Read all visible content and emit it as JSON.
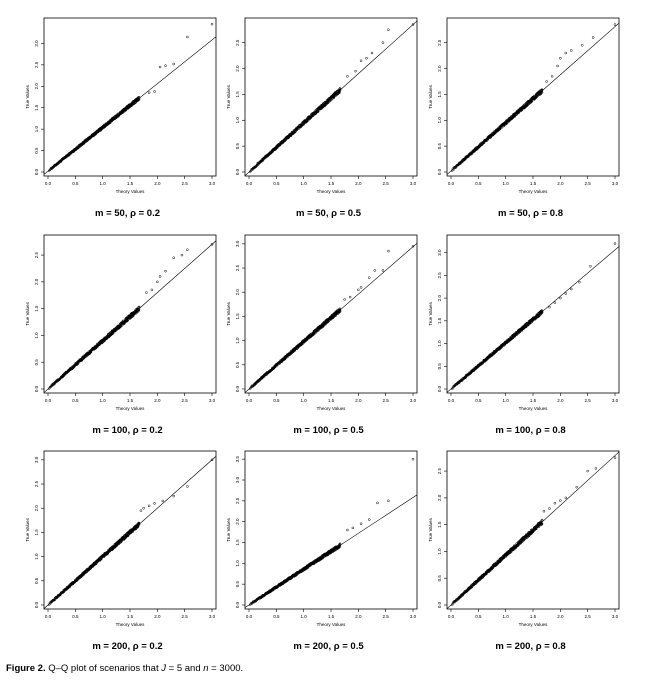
{
  "figure": {
    "caption_label": "Figure 2.",
    "caption_text_1": " Q–Q plot of scenarios that ",
    "caption_J": "J",
    "caption_text_2": " = 5 and ",
    "caption_n": "n",
    "caption_text_3": " = 3000."
  },
  "chart_data": [
    {
      "type": "scatter",
      "title": "m = 50, ρ = 0.2",
      "xlabel": "Theory Values",
      "ylabel": "True Values",
      "xlim": [
        0,
        3.0
      ],
      "ylim": [
        0,
        3.5
      ],
      "xticks": [
        "0.0",
        "0.5",
        "1.0",
        "1.5",
        "2.0",
        "2.5",
        "3.0"
      ],
      "yticks": [
        "0.0",
        "0.5",
        "1.0",
        "1.5",
        "2.0",
        "2.5",
        "3.0"
      ],
      "reference_line": {
        "slope": 1.02,
        "intercept": 0.02
      },
      "tail_points": [
        [
          1.85,
          1.85
        ],
        [
          1.95,
          1.88
        ],
        [
          2.05,
          2.45
        ],
        [
          2.15,
          2.48
        ],
        [
          2.3,
          2.52
        ],
        [
          2.55,
          3.15
        ],
        [
          3.0,
          3.45
        ]
      ]
    },
    {
      "type": "scatter",
      "title": "m = 50, ρ = 0.5",
      "xlabel": "Theory Values",
      "ylabel": "True Values",
      "xlim": [
        0,
        3.0
      ],
      "ylim": [
        0,
        2.9
      ],
      "xticks": [
        "0.0",
        "0.5",
        "1.0",
        "1.5",
        "2.0",
        "2.5",
        "3.0"
      ],
      "yticks": [
        "0.0",
        "0.5",
        "1.0",
        "1.5",
        "2.0",
        "2.5"
      ],
      "reference_line": {
        "slope": 0.95,
        "intercept": 0.0
      },
      "tail_points": [
        [
          1.8,
          1.85
        ],
        [
          1.95,
          1.95
        ],
        [
          2.05,
          2.15
        ],
        [
          2.15,
          2.2
        ],
        [
          2.25,
          2.3
        ],
        [
          2.45,
          2.5
        ],
        [
          2.55,
          2.75
        ],
        [
          3.0,
          2.85
        ]
      ]
    },
    {
      "type": "scatter",
      "title": "m = 50, ρ = 0.8",
      "xlabel": "Theory Values",
      "ylabel": "True Values",
      "xlim": [
        0,
        3.0
      ],
      "ylim": [
        0,
        2.9
      ],
      "xticks": [
        "0.0",
        "0.5",
        "1.0",
        "1.5",
        "2.0",
        "2.5",
        "3.0"
      ],
      "yticks": [
        "0.0",
        "0.5",
        "1.0",
        "1.5",
        "2.0",
        "2.5"
      ],
      "reference_line": {
        "slope": 0.93,
        "intercept": 0.02
      },
      "tail_points": [
        [
          1.75,
          1.75
        ],
        [
          1.85,
          1.85
        ],
        [
          1.95,
          2.05
        ],
        [
          2.0,
          2.2
        ],
        [
          2.1,
          2.3
        ],
        [
          2.2,
          2.35
        ],
        [
          2.4,
          2.45
        ],
        [
          2.6,
          2.6
        ],
        [
          3.0,
          2.85
        ]
      ]
    },
    {
      "type": "scatter",
      "title": "m = 100, ρ = 0.2",
      "xlabel": "Theory Values",
      "ylabel": "True Values",
      "xlim": [
        0,
        3.0
      ],
      "ylim": [
        0,
        2.8
      ],
      "xticks": [
        "0.0",
        "0.5",
        "1.0",
        "1.5",
        "2.0",
        "2.5",
        "3.0"
      ],
      "yticks": [
        "0.0",
        "0.5",
        "1.0",
        "1.5",
        "2.0",
        "2.5"
      ],
      "reference_line": {
        "slope": 0.9,
        "intercept": 0.0
      },
      "tail_points": [
        [
          1.8,
          1.8
        ],
        [
          1.9,
          1.85
        ],
        [
          2.0,
          2.0
        ],
        [
          2.05,
          2.1
        ],
        [
          2.15,
          2.2
        ],
        [
          2.3,
          2.45
        ],
        [
          2.45,
          2.5
        ],
        [
          2.55,
          2.6
        ],
        [
          3.0,
          2.7
        ]
      ]
    },
    {
      "type": "scatter",
      "title": "m = 100, ρ = 0.5",
      "xlabel": "Theory Values",
      "ylabel": "True Values",
      "xlim": [
        0,
        3.0
      ],
      "ylim": [
        0,
        3.1
      ],
      "xticks": [
        "0.0",
        "0.5",
        "1.0",
        "1.5",
        "2.0",
        "2.5",
        "3.0"
      ],
      "yticks": [
        "0.0",
        "0.5",
        "1.0",
        "1.5",
        "2.0",
        "2.5",
        "3.0"
      ],
      "reference_line": {
        "slope": 0.98,
        "intercept": 0.0
      },
      "tail_points": [
        [
          1.75,
          1.85
        ],
        [
          1.85,
          1.9
        ],
        [
          2.0,
          2.05
        ],
        [
          2.05,
          2.1
        ],
        [
          2.2,
          2.3
        ],
        [
          2.3,
          2.45
        ],
        [
          2.45,
          2.45
        ],
        [
          2.55,
          2.85
        ],
        [
          3.0,
          2.95
        ]
      ]
    },
    {
      "type": "scatter",
      "title": "m = 100, ρ = 0.8",
      "xlabel": "Theory Values",
      "ylabel": "True Values",
      "xlim": [
        0,
        3.0
      ],
      "ylim": [
        0,
        3.3
      ],
      "xticks": [
        "0.0",
        "0.5",
        "1.0",
        "1.5",
        "2.0",
        "2.5",
        "3.0"
      ],
      "yticks": [
        "0.0",
        "0.5",
        "1.0",
        "1.5",
        "2.0",
        "2.5",
        "3.0"
      ],
      "reference_line": {
        "slope": 1.02,
        "intercept": 0.0
      },
      "tail_points": [
        [
          1.8,
          1.8
        ],
        [
          1.9,
          1.9
        ],
        [
          2.0,
          2.0
        ],
        [
          2.1,
          2.1
        ],
        [
          2.2,
          2.2
        ],
        [
          2.35,
          2.35
        ],
        [
          2.55,
          2.7
        ],
        [
          3.0,
          3.2
        ]
      ]
    },
    {
      "type": "scatter",
      "title": "m = 200, ρ = 0.2",
      "xlabel": "Theory Values",
      "ylabel": "True Values",
      "xlim": [
        0,
        3.0
      ],
      "ylim": [
        0,
        3.1
      ],
      "xticks": [
        "0.0",
        "0.5",
        "1.0",
        "1.5",
        "2.0",
        "2.5",
        "3.0"
      ],
      "yticks": [
        "0.0",
        "0.5",
        "1.0",
        "1.5",
        "2.0",
        "2.5",
        "3.0"
      ],
      "reference_line": {
        "slope": 1.0,
        "intercept": 0.0
      },
      "tail_points": [
        [
          1.7,
          1.95
        ],
        [
          1.75,
          2.0
        ],
        [
          1.85,
          2.05
        ],
        [
          1.95,
          2.1
        ],
        [
          2.1,
          2.15
        ],
        [
          2.3,
          2.25
        ],
        [
          2.55,
          2.45
        ],
        [
          3.0,
          3.0
        ]
      ]
    },
    {
      "type": "scatter",
      "title": "m = 200, ρ = 0.5",
      "xlabel": "Theory Values",
      "ylabel": "True Values",
      "xlim": [
        0,
        3.0
      ],
      "ylim": [
        0,
        3.6
      ],
      "xticks": [
        "0.0",
        "0.5",
        "1.0",
        "1.5",
        "2.0",
        "2.5",
        "3.0"
      ],
      "yticks": [
        "0.0",
        "0.5",
        "1.0",
        "1.5",
        "2.0",
        "2.5",
        "3.0",
        "3.5"
      ],
      "reference_line": {
        "slope": 0.86,
        "intercept": 0.0
      },
      "tail_points": [
        [
          1.8,
          1.8
        ],
        [
          1.9,
          1.85
        ],
        [
          2.05,
          1.95
        ],
        [
          2.2,
          2.05
        ],
        [
          2.35,
          2.45
        ],
        [
          2.55,
          2.5
        ],
        [
          3.0,
          3.5
        ]
      ]
    },
    {
      "type": "scatter",
      "title": "m = 200, ρ = 0.8",
      "xlabel": "Theory Values",
      "ylabel": "True Values",
      "xlim": [
        0,
        3.0
      ],
      "ylim": [
        0,
        2.8
      ],
      "xticks": [
        "0.0",
        "0.5",
        "1.0",
        "1.5",
        "2.0",
        "2.5",
        "3.0"
      ],
      "yticks": [
        "0.0",
        "0.5",
        "1.0",
        "1.5",
        "2.0",
        "2.5"
      ],
      "reference_line": {
        "slope": 0.93,
        "intercept": 0.0
      },
      "tail_points": [
        [
          1.7,
          1.75
        ],
        [
          1.8,
          1.8
        ],
        [
          1.9,
          1.9
        ],
        [
          2.0,
          1.95
        ],
        [
          2.1,
          2.0
        ],
        [
          2.3,
          2.2
        ],
        [
          2.5,
          2.5
        ],
        [
          2.65,
          2.55
        ],
        [
          3.0,
          2.75
        ]
      ]
    }
  ]
}
